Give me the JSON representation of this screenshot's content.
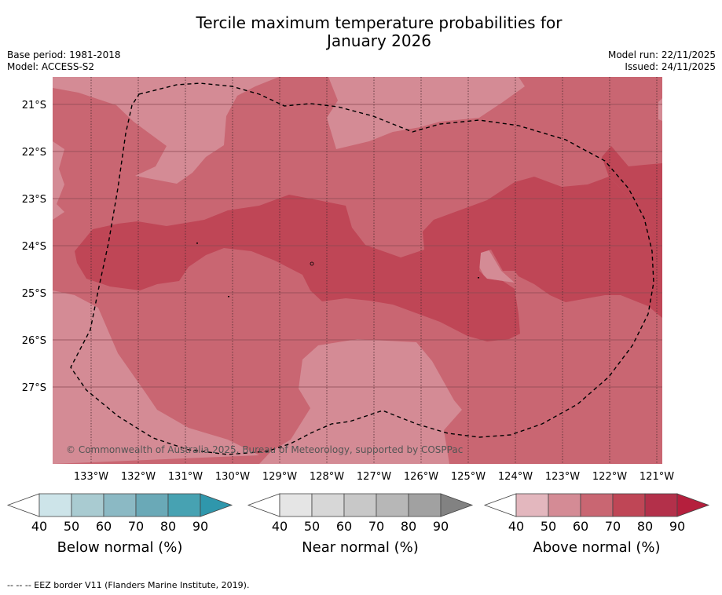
{
  "title_line1": "Tercile maximum temperature probabilities for",
  "title_line2": "January 2026",
  "base_period": "Base period: 1981-2018",
  "model": "Model: ACCESS-S2",
  "model_run": "Model run: 22/11/2025",
  "issued": "Issued: 24/11/2025",
  "copyright": "© Commonwealth of Australia 2025, Bureau of Meteorology, supported by COSPPac",
  "footer": "--  --  -- EEZ border V11 (Flanders Marine Institute, 2019).",
  "map": {
    "lon_labels": [
      "133°W",
      "132°W",
      "131°W",
      "130°W",
      "129°W",
      "128°W",
      "127°W",
      "126°W",
      "125°W",
      "124°W",
      "123°W",
      "122°W",
      "121°W"
    ],
    "lat_labels": [
      "21°S",
      "22°S",
      "23°S",
      "24°S",
      "25°S",
      "26°S",
      "27°S"
    ],
    "colors": {
      "above_40_50": "#e0b4bb",
      "above_50_60": "#d48b95",
      "above_60_70": "#c96672",
      "above_70_80": "#bf4656",
      "above_80_90": "#b3304a"
    }
  },
  "colorbars": [
    {
      "label": "Below normal (%)",
      "ticks": [
        "40",
        "50",
        "60",
        "70",
        "80",
        "90"
      ],
      "colors": [
        "#cde4e9",
        "#a9cbd1",
        "#8bb9c4",
        "#6aa9b7",
        "#47a2b2",
        "#2f97ac"
      ]
    },
    {
      "label": "Near normal (%)",
      "ticks": [
        "40",
        "50",
        "60",
        "70",
        "80",
        "90"
      ],
      "colors": [
        "#e5e5e5",
        "#d7d7d7",
        "#c8c8c8",
        "#b7b7b7",
        "#a1a1a1",
        "#828282"
      ]
    },
    {
      "label": "Above normal (%)",
      "ticks": [
        "40",
        "50",
        "60",
        "70",
        "80",
        "90"
      ],
      "colors": [
        "#e3b7be",
        "#d48b95",
        "#c96672",
        "#bf4656",
        "#b3304a",
        "#b51f3d"
      ]
    }
  ]
}
